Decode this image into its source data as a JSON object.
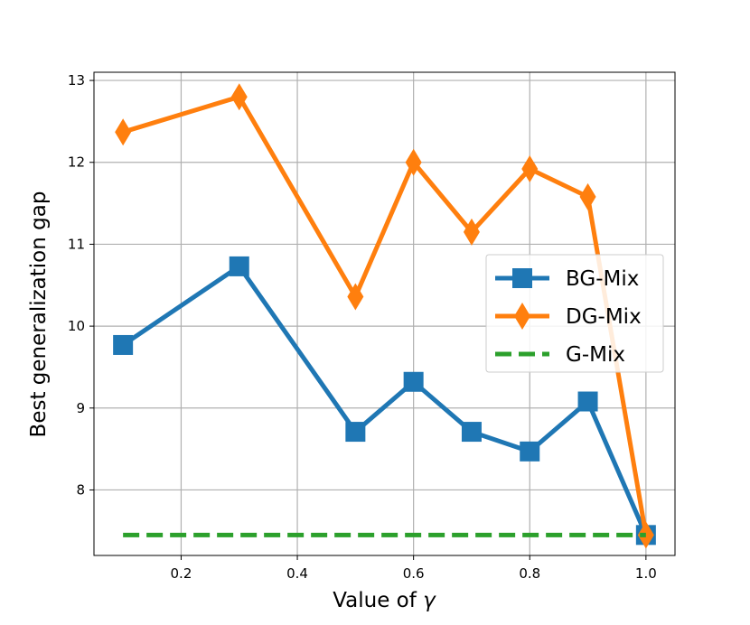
{
  "chart_data": {
    "type": "line",
    "title": "",
    "xlabel": "Value of ",
    "xlabel_symbol": "γ",
    "ylabel": "Best generalization gap",
    "xlim": [
      0.05,
      1.05
    ],
    "ylim": [
      7.2,
      13.1
    ],
    "grid": true,
    "legend_position": "center-right",
    "xticks": [
      0.2,
      0.4,
      0.6,
      0.8,
      1.0
    ],
    "xtick_labels": [
      "0.2",
      "0.4",
      "0.6",
      "0.8",
      "1.0"
    ],
    "yticks": [
      8,
      9,
      10,
      11,
      12,
      13
    ],
    "ytick_labels": [
      "8",
      "9",
      "10",
      "11",
      "12",
      "13"
    ],
    "x": [
      0.1,
      0.3,
      0.5,
      0.6,
      0.7,
      0.8,
      0.9,
      1.0
    ],
    "series": [
      {
        "name": "BG-Mix",
        "color": "#1f77b4",
        "marker": "square",
        "linestyle": "solid",
        "values": [
          9.77,
          10.73,
          8.71,
          9.32,
          8.71,
          8.47,
          9.08,
          7.45
        ]
      },
      {
        "name": "DG-Mix",
        "color": "#ff7f0e",
        "marker": "diamond",
        "linestyle": "solid",
        "values": [
          12.37,
          12.8,
          10.36,
          12.0,
          11.15,
          11.92,
          11.58,
          7.45
        ]
      },
      {
        "name": "G-Mix",
        "color": "#2ca02c",
        "marker": "none",
        "linestyle": "dashed",
        "x": [
          0.1,
          1.0
        ],
        "values": [
          7.45,
          7.45
        ]
      }
    ]
  }
}
